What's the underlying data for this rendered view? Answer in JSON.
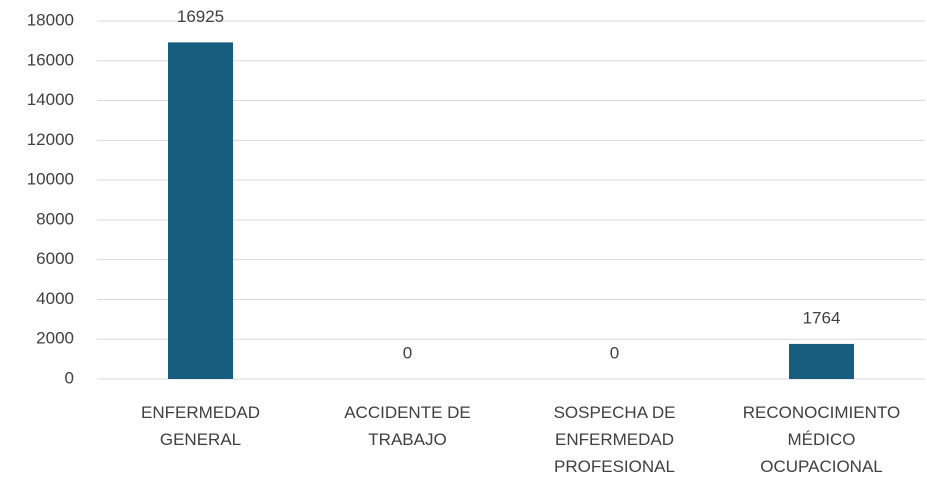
{
  "chart_data": {
    "type": "bar",
    "categories": [
      "ENFERMEDAD GENERAL",
      "ACCIDENTE DE TRABAJO",
      "SOSPECHA DE ENFERMEDAD PROFESIONAL",
      "RECONOCIMIENTO MÉDICO OCUPACIONAL"
    ],
    "values": [
      16925,
      0,
      0,
      1764
    ],
    "color": "#175e7e",
    "ylim": [
      0,
      18000
    ],
    "yticks": [
      0,
      2000,
      4000,
      6000,
      8000,
      10000,
      12000,
      14000,
      16000,
      18000
    ],
    "grid": true
  }
}
